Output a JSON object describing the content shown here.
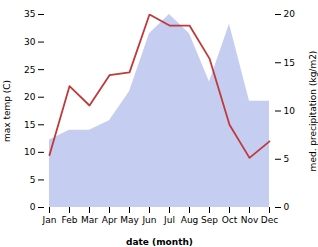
{
  "chart_data": {
    "type": "line",
    "xlabel": "date (month)",
    "ylabel": "max temp (C)",
    "y2label": "med. precipitation (kg/m2)",
    "categories": [
      "Jan",
      "Feb",
      "Mar",
      "Apr",
      "May",
      "Jun",
      "Jul",
      "Aug",
      "Sep",
      "Oct",
      "Nov",
      "Dec"
    ],
    "series": [
      {
        "type": "area",
        "axis": "y2",
        "color": "#c5cdf0",
        "values": [
          7.0,
          8.0,
          8.0,
          9.0,
          12.0,
          18.0,
          20.0,
          18.0,
          13.0,
          19.0,
          11.0,
          11.0
        ]
      },
      {
        "type": "line",
        "color": "#c0393b",
        "values": [
          9.5,
          22.0,
          18.5,
          24.0,
          24.5,
          35.0,
          33.0,
          33.0,
          27.0,
          15.0,
          9.0,
          12.0
        ]
      }
    ],
    "ylim": [
      0,
      35
    ],
    "yticks": [
      0,
      5,
      10,
      15,
      20,
      25,
      30,
      35
    ],
    "y2lim": [
      0,
      20
    ],
    "y2ticks": [
      0,
      5,
      10,
      15,
      20
    ]
  }
}
